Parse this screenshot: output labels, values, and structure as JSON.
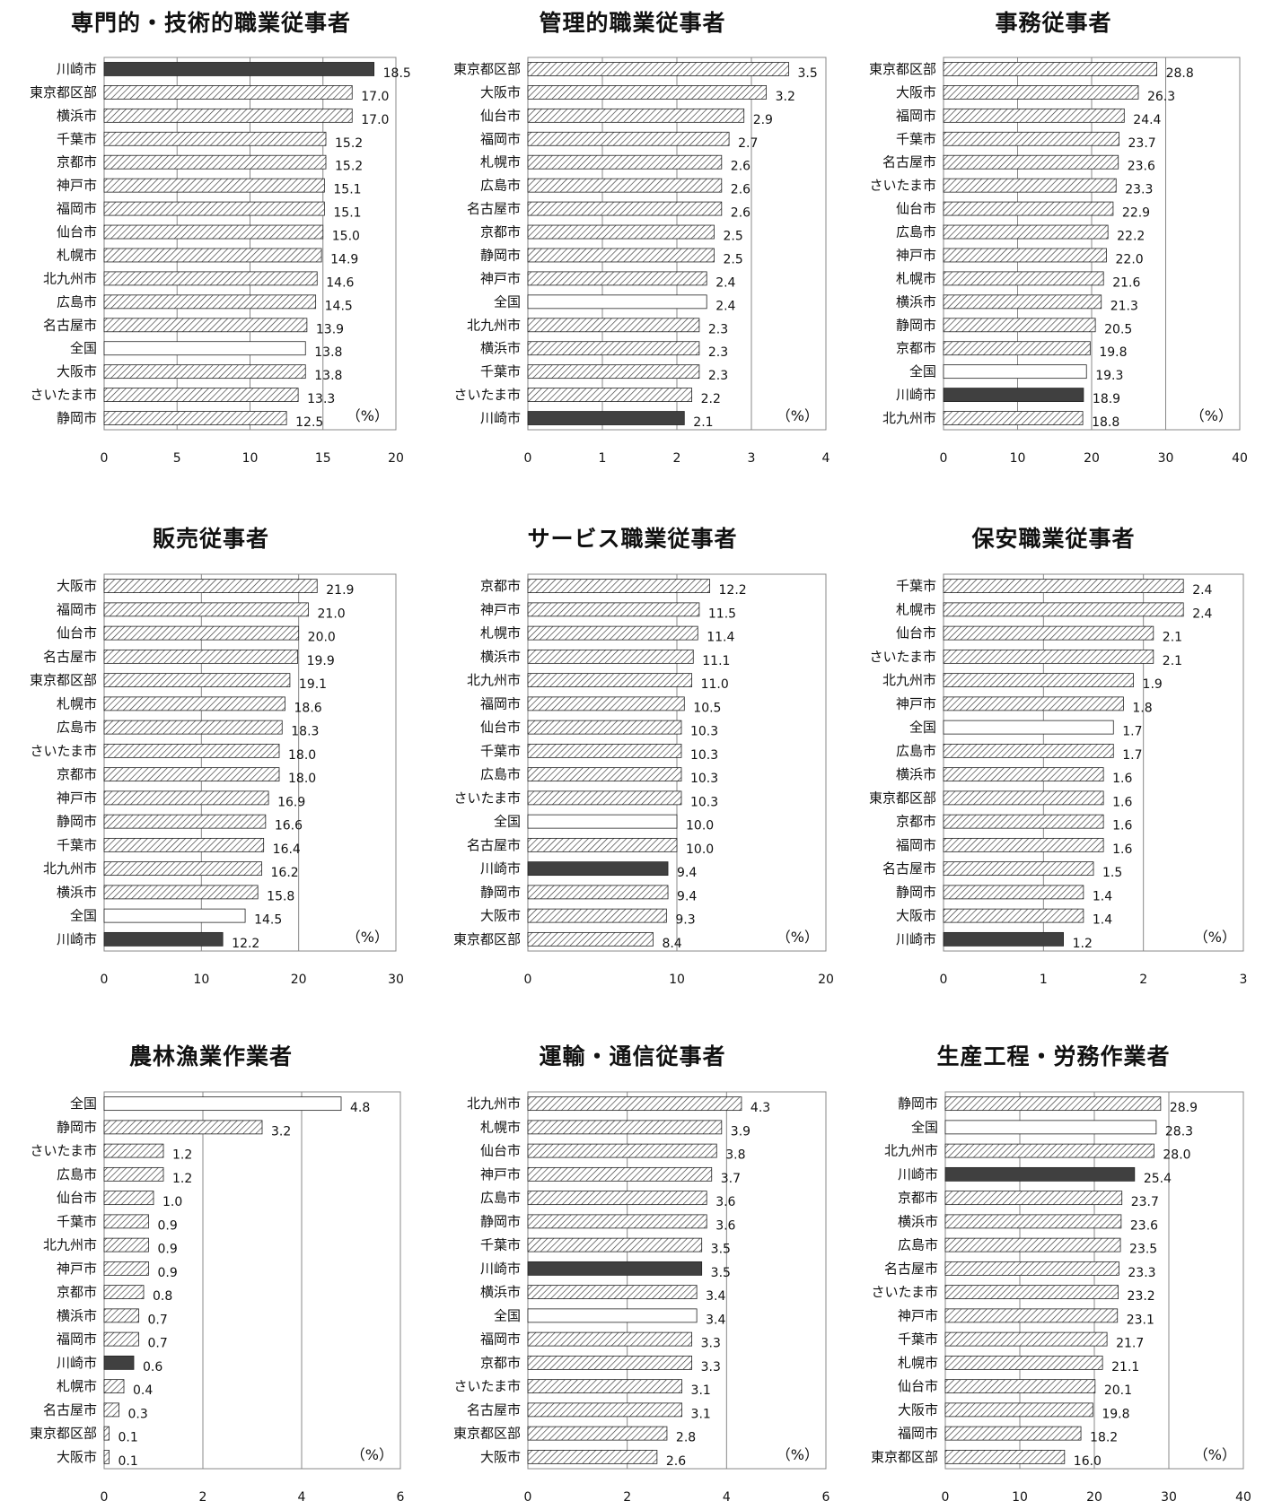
{
  "chart_data": [
    {
      "type": "bar",
      "title": "専門的・技術的職業従事者",
      "categories": [
        "川崎市",
        "東京都区部",
        "横浜市",
        "千葉市",
        "京都市",
        "神戸市",
        "福岡市",
        "仙台市",
        "札幌市",
        "北九州市",
        "広島市",
        "名古屋市",
        "全国",
        "大阪市",
        "さいたま市",
        "静岡市"
      ],
      "values": [
        18.5,
        17.0,
        17.0,
        15.2,
        15.2,
        15.1,
        15.1,
        15.0,
        14.9,
        14.6,
        14.5,
        13.9,
        13.8,
        13.8,
        13.3,
        12.5
      ],
      "value_labels": [
        "18.5",
        "17.0",
        "17.0",
        "15.2",
        "15.2",
        "15.1",
        "15.1",
        "15.0",
        "14.9",
        "14.6",
        "14.5",
        "13.9",
        "13.8",
        "13.8",
        "13.3",
        "12.5"
      ],
      "xlim": [
        0,
        20
      ],
      "ticks": [
        "0",
        "5",
        "10",
        "15",
        "20"
      ],
      "unit": "（%）",
      "highlight": "川崎市",
      "national": "全国",
      "grid": true
    },
    {
      "type": "bar",
      "title": "管理的職業従事者",
      "categories": [
        "東京都区部",
        "大阪市",
        "仙台市",
        "福岡市",
        "札幌市",
        "広島市",
        "名古屋市",
        "京都市",
        "静岡市",
        "神戸市",
        "全国",
        "北九州市",
        "横浜市",
        "千葉市",
        "さいたま市",
        "川崎市"
      ],
      "values": [
        3.5,
        3.2,
        2.9,
        2.7,
        2.6,
        2.6,
        2.6,
        2.5,
        2.5,
        2.4,
        2.4,
        2.3,
        2.3,
        2.3,
        2.2,
        2.1
      ],
      "value_labels": [
        "3.5",
        "3.2",
        "2.9",
        "2.7",
        "2.6",
        "2.6",
        "2.6",
        "2.5",
        "2.5",
        "2.4",
        "2.4",
        "2.3",
        "2.3",
        "2.3",
        "2.2",
        "2.1"
      ],
      "xlim": [
        0,
        4
      ],
      "ticks": [
        "0",
        "1",
        "2",
        "3",
        "4"
      ],
      "unit": "（%）",
      "highlight": "川崎市",
      "national": "全国",
      "grid": true
    },
    {
      "type": "bar",
      "title": "事務従事者",
      "categories": [
        "東京都区部",
        "大阪市",
        "福岡市",
        "千葉市",
        "名古屋市",
        "さいたま市",
        "仙台市",
        "広島市",
        "神戸市",
        "札幌市",
        "横浜市",
        "静岡市",
        "京都市",
        "全国",
        "川崎市",
        "北九州市"
      ],
      "values": [
        28.8,
        26.3,
        24.4,
        23.7,
        23.6,
        23.3,
        22.9,
        22.2,
        22.0,
        21.6,
        21.3,
        20.5,
        19.8,
        19.3,
        18.9,
        18.8
      ],
      "value_labels": [
        "28.8",
        "26.3",
        "24.4",
        "23.7",
        "23.6",
        "23.3",
        "22.9",
        "22.2",
        "22.0",
        "21.6",
        "21.3",
        "20.5",
        "19.8",
        "19.3",
        "18.9",
        "18.8"
      ],
      "xlim": [
        0,
        40
      ],
      "ticks": [
        "0",
        "10",
        "20",
        "30",
        "40"
      ],
      "unit": "（%）",
      "highlight": "川崎市",
      "national": "全国",
      "grid": true
    },
    {
      "type": "bar",
      "title": "販売従事者",
      "categories": [
        "大阪市",
        "福岡市",
        "仙台市",
        "名古屋市",
        "東京都区部",
        "札幌市",
        "広島市",
        "さいたま市",
        "京都市",
        "神戸市",
        "静岡市",
        "千葉市",
        "北九州市",
        "横浜市",
        "全国",
        "川崎市"
      ],
      "values": [
        21.9,
        21.0,
        20.0,
        19.9,
        19.1,
        18.6,
        18.3,
        18.0,
        18.0,
        16.9,
        16.6,
        16.4,
        16.2,
        15.8,
        14.5,
        12.2
      ],
      "value_labels": [
        "21.9",
        "21.0",
        "20.0",
        "19.9",
        "19.1",
        "18.6",
        "18.3",
        "18.0",
        "18.0",
        "16.9",
        "16.6",
        "16.4",
        "16.2",
        "15.8",
        "14.5",
        "12.2"
      ],
      "xlim": [
        0,
        30
      ],
      "ticks": [
        "0",
        "10",
        "20",
        "30"
      ],
      "unit": "（%）",
      "highlight": "川崎市",
      "national": "全国",
      "grid": true
    },
    {
      "type": "bar",
      "title": "サービス職業従事者",
      "categories": [
        "京都市",
        "神戸市",
        "札幌市",
        "横浜市",
        "北九州市",
        "福岡市",
        "仙台市",
        "千葉市",
        "広島市",
        "さいたま市",
        "全国",
        "名古屋市",
        "川崎市",
        "静岡市",
        "大阪市",
        "東京都区部"
      ],
      "values": [
        12.2,
        11.5,
        11.4,
        11.1,
        11.0,
        10.5,
        10.3,
        10.3,
        10.3,
        10.3,
        10.0,
        10.0,
        9.4,
        9.4,
        9.3,
        8.4
      ],
      "value_labels": [
        "12.2",
        "11.5",
        "11.4",
        "11.1",
        "11.0",
        "10.5",
        "10.3",
        "10.3",
        "10.3",
        "10.3",
        "10.0",
        "10.0",
        "9.4",
        "9.4",
        "9.3",
        "8.4"
      ],
      "xlim": [
        0,
        20
      ],
      "ticks": [
        "0",
        "10",
        "20"
      ],
      "unit": "（%）",
      "highlight": "川崎市",
      "national": "全国",
      "grid": true
    },
    {
      "type": "bar",
      "title": "保安職業従事者",
      "categories": [
        "千葉市",
        "札幌市",
        "仙台市",
        "さいたま市",
        "北九州市",
        "神戸市",
        "全国",
        "広島市",
        "横浜市",
        "東京都区部",
        "京都市",
        "福岡市",
        "名古屋市",
        "静岡市",
        "大阪市",
        "川崎市"
      ],
      "values": [
        2.4,
        2.4,
        2.1,
        2.1,
        1.9,
        1.8,
        1.7,
        1.7,
        1.6,
        1.6,
        1.6,
        1.6,
        1.5,
        1.4,
        1.4,
        1.2
      ],
      "value_labels": [
        "2.4",
        "2.4",
        "2.1",
        "2.1",
        "1.9",
        "1.8",
        "1.7",
        "1.7",
        "1.6",
        "1.6",
        "1.6",
        "1.6",
        "1.5",
        "1.4",
        "1.4",
        "1.2"
      ],
      "xlim": [
        0,
        3
      ],
      "ticks": [
        "0",
        "1",
        "2",
        "3"
      ],
      "unit": "（%）",
      "highlight": "川崎市",
      "national": "全国",
      "grid": true
    },
    {
      "type": "bar",
      "title": "農林漁業作業者",
      "categories": [
        "全国",
        "静岡市",
        "さいたま市",
        "広島市",
        "仙台市",
        "千葉市",
        "北九州市",
        "神戸市",
        "京都市",
        "横浜市",
        "福岡市",
        "川崎市",
        "札幌市",
        "名古屋市",
        "東京都区部",
        "大阪市"
      ],
      "values": [
        4.8,
        3.2,
        1.2,
        1.2,
        1.0,
        0.9,
        0.9,
        0.9,
        0.8,
        0.7,
        0.7,
        0.6,
        0.4,
        0.3,
        0.1,
        0.1
      ],
      "value_labels": [
        "4.8",
        "3.2",
        "1.2",
        "1.2",
        "1.0",
        "0.9",
        "0.9",
        "0.9",
        "0.8",
        "0.7",
        "0.7",
        "0.6",
        "0.4",
        "0.3",
        "0.1",
        "0.1"
      ],
      "xlim": [
        0,
        6
      ],
      "ticks": [
        "0",
        "2",
        "4",
        "6"
      ],
      "unit": "（%）",
      "highlight": "川崎市",
      "national": "全国",
      "grid": true
    },
    {
      "type": "bar",
      "title": "運輸・通信従事者",
      "categories": [
        "北九州市",
        "札幌市",
        "仙台市",
        "神戸市",
        "広島市",
        "静岡市",
        "千葉市",
        "川崎市",
        "横浜市",
        "全国",
        "福岡市",
        "京都市",
        "さいたま市",
        "名古屋市",
        "東京都区部",
        "大阪市"
      ],
      "values": [
        4.3,
        3.9,
        3.8,
        3.7,
        3.6,
        3.6,
        3.5,
        3.5,
        3.4,
        3.4,
        3.3,
        3.3,
        3.1,
        3.1,
        2.8,
        2.6
      ],
      "value_labels": [
        "4.3",
        "3.9",
        "3.8",
        "3.7",
        "3.6",
        "3.6",
        "3.5",
        "3.5",
        "3.4",
        "3.4",
        "3.3",
        "3.3",
        "3.1",
        "3.1",
        "2.8",
        "2.6"
      ],
      "xlim": [
        0,
        6
      ],
      "ticks": [
        "0",
        "2",
        "4",
        "6"
      ],
      "unit": "（%）",
      "highlight": "川崎市",
      "national": "全国",
      "grid": true
    },
    {
      "type": "bar",
      "title": "生産工程・労務作業者",
      "categories": [
        "静岡市",
        "全国",
        "北九州市",
        "川崎市",
        "京都市",
        "横浜市",
        "広島市",
        "名古屋市",
        "さいたま市",
        "神戸市",
        "千葉市",
        "札幌市",
        "仙台市",
        "大阪市",
        "福岡市",
        "東京都区部"
      ],
      "values": [
        28.9,
        28.3,
        28.0,
        25.4,
        23.7,
        23.6,
        23.5,
        23.3,
        23.2,
        23.1,
        21.7,
        21.1,
        20.1,
        19.8,
        18.2,
        16.0
      ],
      "value_labels": [
        "28.9",
        "28.3",
        "28.0",
        "25.4",
        "23.7",
        "23.6",
        "23.5",
        "23.3",
        "23.2",
        "23.1",
        "21.7",
        "21.1",
        "20.1",
        "19.8",
        "18.2",
        "16.0"
      ],
      "xlim": [
        0,
        40
      ],
      "ticks": [
        "0",
        "10",
        "20",
        "30",
        "40"
      ],
      "unit": "（%）",
      "highlight": "川崎市",
      "national": "全国",
      "grid": true
    }
  ]
}
